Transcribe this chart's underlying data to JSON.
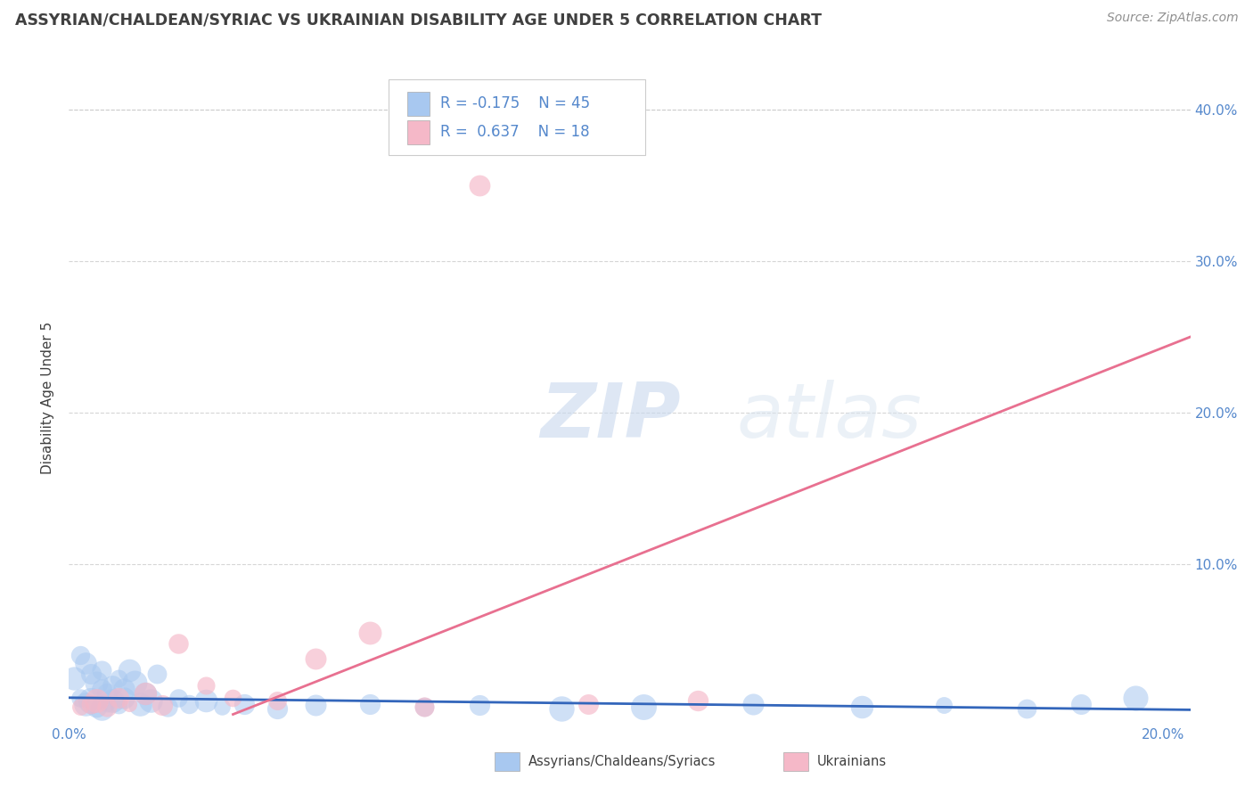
{
  "title": "ASSYRIAN/CHALDEAN/SYRIAC VS UKRAINIAN DISABILITY AGE UNDER 5 CORRELATION CHART",
  "source": "Source: ZipAtlas.com",
  "ylabel": "Disability Age Under 5",
  "xlim": [
    0.0,
    0.205
  ],
  "ylim": [
    -0.005,
    0.425
  ],
  "xticks": [
    0.0,
    0.05,
    0.1,
    0.15,
    0.2
  ],
  "xticklabels": [
    "0.0%",
    "",
    "",
    "",
    "20.0%"
  ],
  "yticks": [
    0.0,
    0.1,
    0.2,
    0.3,
    0.4
  ],
  "right_yticks": [
    0.1,
    0.2,
    0.3,
    0.4
  ],
  "right_yticklabels": [
    "10.0%",
    "20.0%",
    "30.0%",
    "40.0%"
  ],
  "legend_r_blue": "-0.175",
  "legend_n_blue": "45",
  "legend_r_pink": "0.637",
  "legend_n_pink": "18",
  "blue_color": "#a8c8f0",
  "pink_color": "#f5b8c8",
  "blue_line_color": "#3366bb",
  "pink_line_color": "#e87090",
  "title_color": "#404040",
  "source_color": "#909090",
  "axis_color": "#5588cc",
  "grid_color": "#cccccc",
  "watermark_zip": "ZIP",
  "watermark_atlas": "atlas",
  "blue_scatter_x": [
    0.001,
    0.002,
    0.002,
    0.003,
    0.003,
    0.004,
    0.004,
    0.005,
    0.005,
    0.006,
    0.006,
    0.006,
    0.007,
    0.007,
    0.008,
    0.008,
    0.009,
    0.009,
    0.01,
    0.01,
    0.011,
    0.012,
    0.013,
    0.014,
    0.015,
    0.016,
    0.018,
    0.02,
    0.022,
    0.025,
    0.028,
    0.032,
    0.038,
    0.045,
    0.055,
    0.065,
    0.075,
    0.09,
    0.105,
    0.125,
    0.145,
    0.16,
    0.175,
    0.185,
    0.195
  ],
  "blue_scatter_y": [
    0.025,
    0.04,
    0.012,
    0.035,
    0.008,
    0.028,
    0.01,
    0.022,
    0.006,
    0.018,
    0.03,
    0.005,
    0.015,
    0.008,
    0.02,
    0.01,
    0.025,
    0.007,
    0.018,
    0.012,
    0.03,
    0.022,
    0.008,
    0.015,
    0.01,
    0.028,
    0.006,
    0.012,
    0.008,
    0.01,
    0.006,
    0.008,
    0.005,
    0.007,
    0.008,
    0.006,
    0.007,
    0.005,
    0.006,
    0.008,
    0.006,
    0.007,
    0.005,
    0.008,
    0.012
  ],
  "pink_scatter_x": [
    0.002,
    0.004,
    0.005,
    0.007,
    0.009,
    0.011,
    0.014,
    0.017,
    0.02,
    0.025,
    0.03,
    0.038,
    0.045,
    0.055,
    0.065,
    0.075,
    0.095,
    0.115
  ],
  "pink_scatter_y": [
    0.006,
    0.008,
    0.01,
    0.006,
    0.012,
    0.008,
    0.015,
    0.007,
    0.048,
    0.02,
    0.012,
    0.01,
    0.038,
    0.055,
    0.006,
    0.35,
    0.008,
    0.01
  ],
  "blue_trend_x": [
    0.0,
    0.205
  ],
  "blue_trend_y": [
    0.012,
    0.004
  ],
  "pink_trend_x": [
    0.03,
    0.205
  ],
  "pink_trend_y": [
    0.001,
    0.25
  ],
  "background_color": "#ffffff"
}
